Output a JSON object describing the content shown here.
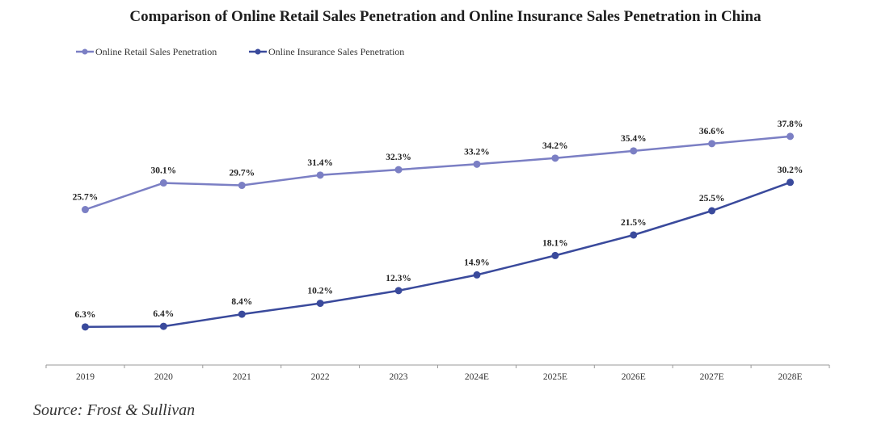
{
  "chart_data": {
    "type": "line",
    "title": "Comparison of Online Retail Sales Penetration and Online Insurance Sales Penetration in China",
    "xlabel": "",
    "ylabel": "",
    "categories": [
      "2019",
      "2020",
      "2021",
      "2022",
      "2023",
      "2024E",
      "2025E",
      "2026E",
      "2027E",
      "2028E"
    ],
    "series": [
      {
        "name": "Online Retail Sales Penetration",
        "color": "#7b7fc4",
        "values": [
          25.7,
          30.1,
          29.7,
          31.4,
          32.3,
          33.2,
          34.2,
          35.4,
          36.6,
          37.8
        ],
        "labels": [
          "25.7%",
          "30.1%",
          "29.7%",
          "31.4%",
          "32.3%",
          "33.2%",
          "34.2%",
          "35.4%",
          "36.6%",
          "37.8%"
        ]
      },
      {
        "name": "Online Insurance Sales Penetration",
        "color": "#3a4a9c",
        "values": [
          6.3,
          6.4,
          8.4,
          10.2,
          12.3,
          14.9,
          18.1,
          21.5,
          25.5,
          30.2
        ],
        "labels": [
          "6.3%",
          "6.4%",
          "8.4%",
          "10.2%",
          "12.3%",
          "14.9%",
          "18.1%",
          "21.5%",
          "25.5%",
          "30.2%"
        ]
      }
    ],
    "ylim": [
      0,
      40
    ],
    "grid": false,
    "y_axis_visible": false,
    "legend_position": "top-left",
    "value_unit": "%"
  },
  "source": "Source: Frost & Sullivan"
}
